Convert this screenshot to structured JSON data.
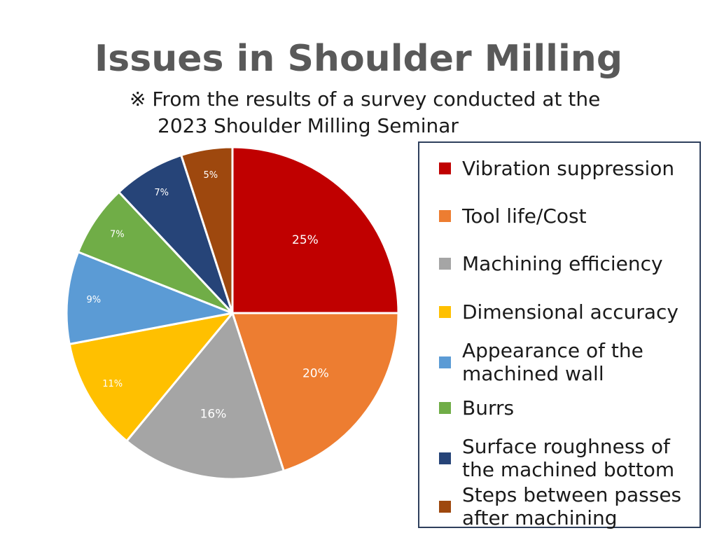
{
  "chart_data": {
    "type": "pie",
    "title": "Issues in Shoulder Milling",
    "subtitle_line1": "※ From the results of a survey conducted at the",
    "subtitle_line2": "2023 Shoulder Milling Seminar",
    "legend_position": "right",
    "slices": [
      {
        "name": "Vibration suppression",
        "value": 25,
        "label": "25%",
        "color": "#c00000",
        "label_color": "#ffffff"
      },
      {
        "name": "Tool life/Cost",
        "value": 20,
        "label": "20%",
        "color": "#ed7d31",
        "label_color": "#ffffff"
      },
      {
        "name": "Machining efficiency",
        "value": 16,
        "label": "16%",
        "color": "#a5a5a5",
        "label_color": "#ffffff"
      },
      {
        "name": "Dimensional accuracy",
        "value": 11,
        "label": "11%",
        "color": "#ffc000",
        "label_color": "#ffffff"
      },
      {
        "name": "Appearance of the\nmachined wall",
        "value": 9,
        "label": "9%",
        "color": "#5b9bd5",
        "label_color": "#ffffff"
      },
      {
        "name": "Burrs",
        "value": 7,
        "label": "7%",
        "color": "#70ad47",
        "label_color": "#ffffff"
      },
      {
        "name": "Surface roughness of\nthe machined bottom",
        "value": 7,
        "label": "7%",
        "color": "#264478",
        "label_color": "#ffffff"
      },
      {
        "name": "Steps between passes\nafter machining",
        "value": 5,
        "label": "5%",
        "color": "#9e480e",
        "label_color": "#ffffff"
      }
    ]
  }
}
